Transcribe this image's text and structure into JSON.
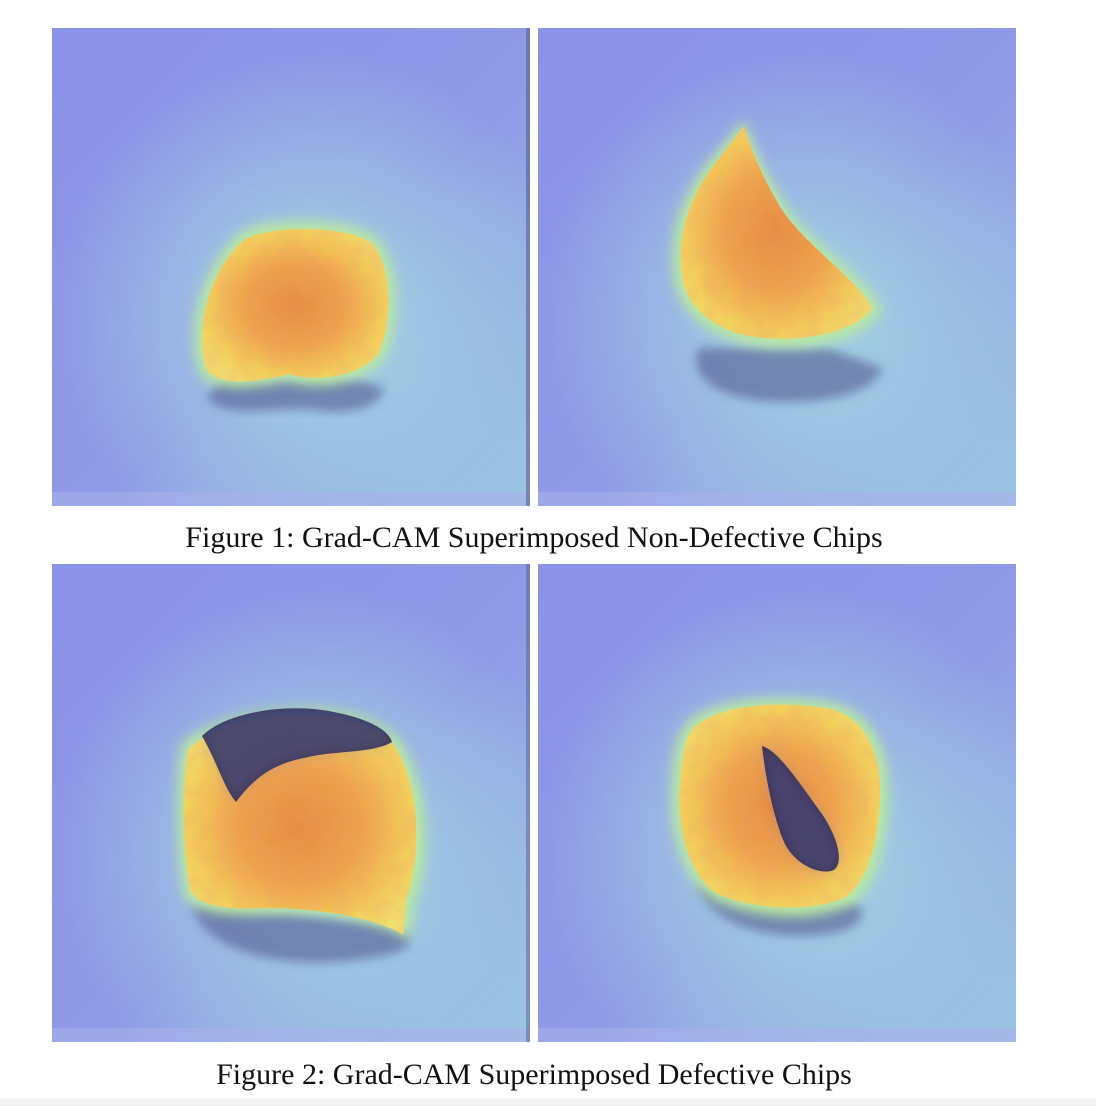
{
  "figure1": {
    "caption": "Figure 1: Grad-CAM Superimposed Non-Defective Chips",
    "panels": [
      {
        "heatmap_overlay": "grad-cam",
        "defect_region": false
      },
      {
        "heatmap_overlay": "grad-cam",
        "defect_region": false
      }
    ]
  },
  "figure2": {
    "caption": "Figure 2: Grad-CAM Superimposed Defective Chips",
    "panels": [
      {
        "heatmap_overlay": "grad-cam",
        "defect_region": true
      },
      {
        "heatmap_overlay": "grad-cam",
        "defect_region": true
      }
    ]
  },
  "colors": {
    "background_purple": "#8a8fe6",
    "background_teal": "#9fd3e0",
    "chip_yellow": "#f2d35a",
    "chip_orange": "#e4904a",
    "halo_green": "#b9e8a0",
    "defect_dark": "#2a2550"
  }
}
